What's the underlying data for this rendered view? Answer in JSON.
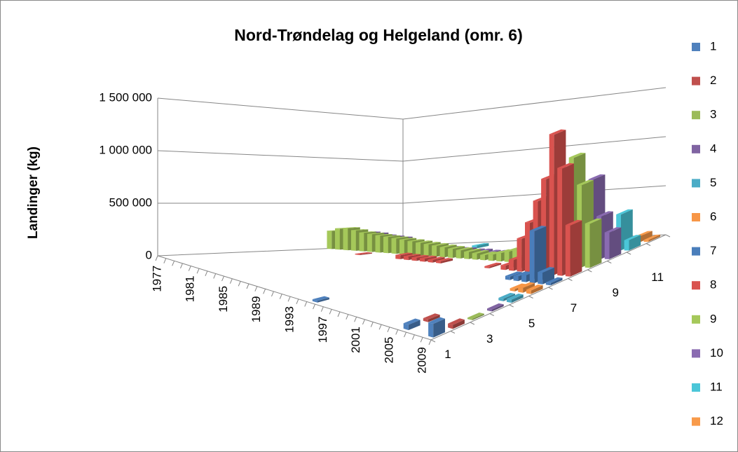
{
  "chart_data": {
    "type": "bar3d",
    "title": "Nord-Trøndelag og Helgeland (omr. 6)",
    "y_label": "Landinger (kg)",
    "categories": [
      "1977",
      null,
      null,
      null,
      "1981",
      null,
      null,
      null,
      "1985",
      null,
      null,
      null,
      "1989",
      null,
      null,
      null,
      "1993",
      null,
      null,
      null,
      "1997",
      null,
      null,
      null,
      "2001",
      null,
      null,
      null,
      "2005",
      null,
      null,
      null,
      "2009"
    ],
    "ylim": [
      0,
      1500000
    ],
    "yticks": [
      0,
      {
        "value": 500000,
        "label": "500 000"
      },
      {
        "value": 1000000,
        "label": "1 000 000"
      },
      {
        "value": 1500000,
        "label": "1 500 000"
      }
    ],
    "grid": true,
    "legend": "right",
    "series": [
      {
        "name": "1",
        "color": "#4f81bd",
        "values": [
          0,
          0,
          0,
          0,
          0,
          0,
          0,
          0,
          0,
          0,
          0,
          0,
          0,
          0,
          0,
          0,
          0,
          0,
          15000,
          0,
          0,
          0,
          0,
          0,
          0,
          0,
          0,
          0,
          0,
          40000,
          0,
          0,
          100000
        ]
      },
      {
        "name": "2",
        "color": "#c0504d",
        "values": [
          0,
          0,
          0,
          0,
          0,
          0,
          0,
          0,
          0,
          0,
          0,
          0,
          0,
          0,
          0,
          0,
          0,
          0,
          0,
          0,
          0,
          0,
          0,
          0,
          0,
          0,
          0,
          0,
          0,
          20000,
          0,
          0,
          30000
        ]
      },
      {
        "name": "3",
        "color": "#9bbb59",
        "values": [
          0,
          0,
          0,
          0,
          0,
          0,
          0,
          0,
          0,
          0,
          0,
          0,
          0,
          0,
          0,
          0,
          0,
          0,
          0,
          0,
          0,
          0,
          0,
          0,
          0,
          0,
          0,
          0,
          0,
          0,
          0,
          0,
          10000
        ]
      },
      {
        "name": "4",
        "color": "#8064a2",
        "values": [
          0,
          0,
          0,
          0,
          0,
          0,
          0,
          0,
          0,
          0,
          0,
          0,
          0,
          0,
          0,
          0,
          0,
          0,
          0,
          0,
          0,
          0,
          0,
          0,
          0,
          0,
          0,
          0,
          0,
          0,
          0,
          0,
          15000
        ]
      },
      {
        "name": "5",
        "color": "#4bacc6",
        "values": [
          0,
          0,
          0,
          0,
          0,
          0,
          0,
          0,
          0,
          0,
          0,
          0,
          0,
          0,
          0,
          0,
          0,
          0,
          0,
          0,
          0,
          0,
          0,
          0,
          0,
          0,
          0,
          0,
          0,
          0,
          0,
          20000,
          25000
        ]
      },
      {
        "name": "6",
        "color": "#f79646",
        "values": [
          0,
          0,
          0,
          0,
          0,
          0,
          0,
          0,
          0,
          0,
          0,
          0,
          0,
          0,
          0,
          0,
          0,
          0,
          0,
          0,
          0,
          0,
          0,
          0,
          0,
          0,
          0,
          0,
          0,
          0,
          20000,
          40000,
          30000
        ]
      },
      {
        "name": "7",
        "color": "#4a7ebb",
        "values": [
          0,
          0,
          0,
          0,
          0,
          0,
          0,
          0,
          0,
          0,
          0,
          0,
          0,
          0,
          0,
          0,
          0,
          0,
          0,
          0,
          0,
          0,
          0,
          0,
          0,
          0,
          0,
          30000,
          40000,
          60000,
          450000,
          100000,
          20000
        ]
      },
      {
        "name": "8",
        "color": "#d9534f",
        "values": [
          0,
          0,
          0,
          0,
          0,
          0,
          10000,
          0,
          0,
          0,
          0,
          40000,
          35000,
          30000,
          30000,
          25000,
          20000,
          0,
          0,
          0,
          0,
          0,
          15000,
          0,
          40000,
          100000,
          300000,
          450000,
          650000,
          850000,
          1250000,
          950000,
          450000
        ]
      },
      {
        "name": "9",
        "color": "#a5c85a",
        "values": [
          200000,
          230000,
          240000,
          220000,
          200000,
          190000,
          180000,
          170000,
          160000,
          150000,
          140000,
          130000,
          120000,
          110000,
          100000,
          90000,
          80000,
          70000,
          60000,
          50000,
          60000,
          80000,
          100000,
          120000,
          200000,
          250000,
          300000,
          350000,
          550000,
          850000,
          1000000,
          750000,
          400000
        ]
      },
      {
        "name": "10",
        "color": "#8a6bb1",
        "values": [
          0,
          0,
          180000,
          170000,
          150000,
          140000,
          130000,
          80000,
          70000,
          60000,
          50000,
          40000,
          40000,
          30000,
          30000,
          20000,
          20000,
          10000,
          10000,
          10000,
          0,
          0,
          0,
          0,
          0,
          80000,
          0,
          100000,
          150000,
          400000,
          750000,
          400000,
          250000
        ]
      },
      {
        "name": "11",
        "color": "#4bc6d8",
        "values": [
          0,
          0,
          0,
          20000,
          0,
          0,
          0,
          0,
          0,
          0,
          0,
          0,
          0,
          30000,
          0,
          0,
          0,
          0,
          0,
          0,
          0,
          0,
          0,
          0,
          0,
          0,
          0,
          0,
          40000,
          0,
          150000,
          350000,
          100000
        ]
      },
      {
        "name": "12",
        "color": "#f89a4a",
        "values": [
          0,
          0,
          0,
          0,
          0,
          0,
          0,
          0,
          0,
          0,
          0,
          0,
          0,
          0,
          0,
          0,
          0,
          0,
          0,
          0,
          0,
          0,
          0,
          0,
          0,
          0,
          0,
          0,
          0,
          0,
          30000,
          60000,
          20000
        ]
      }
    ]
  }
}
